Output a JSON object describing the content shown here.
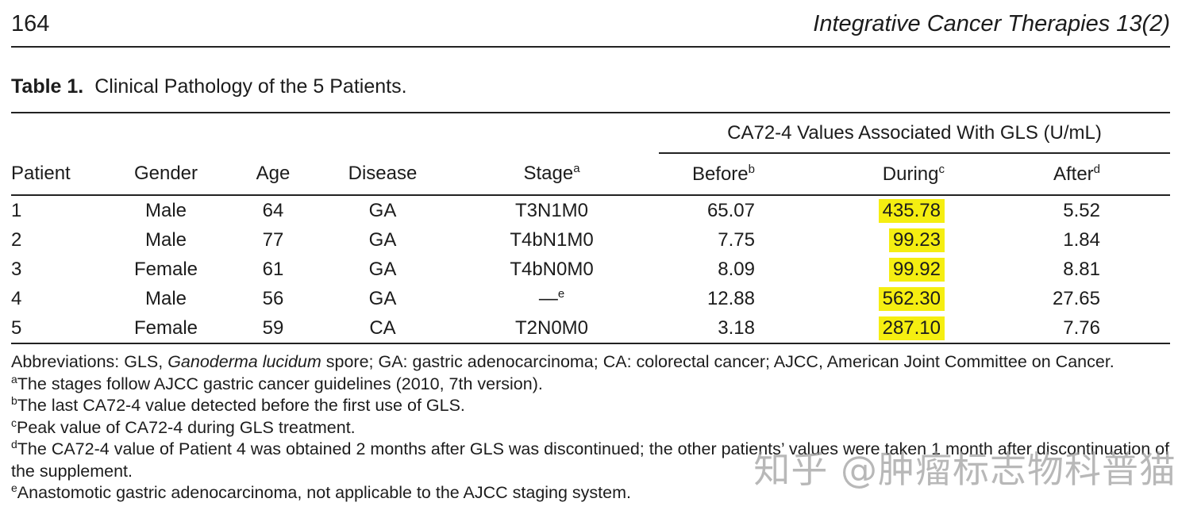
{
  "header": {
    "page_number": "164",
    "journal_title": "Integrative Cancer Therapies 13(2)"
  },
  "table": {
    "caption_label": "Table 1.",
    "caption_text": "Clinical Pathology of the 5 Patients.",
    "group_header": "CA72-4 Values Associated With GLS (U/mL)",
    "highlight_color": "#f5ee11",
    "columns": [
      {
        "label": "Patient",
        "sup": ""
      },
      {
        "label": "Gender",
        "sup": ""
      },
      {
        "label": "Age",
        "sup": ""
      },
      {
        "label": "Disease",
        "sup": ""
      },
      {
        "label": "Stage",
        "sup": "a"
      },
      {
        "label": "Before",
        "sup": "b"
      },
      {
        "label": "During",
        "sup": "c"
      },
      {
        "label": "After",
        "sup": "d"
      }
    ],
    "rows": [
      {
        "patient": "1",
        "gender": "Male",
        "age": "64",
        "disease": "GA",
        "stage": "T3N1M0",
        "stage_sup": "",
        "before": "65.07",
        "during": "435.78",
        "after": "5.52"
      },
      {
        "patient": "2",
        "gender": "Male",
        "age": "77",
        "disease": "GA",
        "stage": "T4bN1M0",
        "stage_sup": "",
        "before": "7.75",
        "during": "99.23",
        "after": "1.84"
      },
      {
        "patient": "3",
        "gender": "Female",
        "age": "61",
        "disease": "GA",
        "stage": "T4bN0M0",
        "stage_sup": "",
        "before": "8.09",
        "during": "99.92",
        "after": "8.81"
      },
      {
        "patient": "4",
        "gender": "Male",
        "age": "56",
        "disease": "GA",
        "stage": "—",
        "stage_sup": "e",
        "before": "12.88",
        "during": "562.30",
        "after": "27.65"
      },
      {
        "patient": "5",
        "gender": "Female",
        "age": "59",
        "disease": "CA",
        "stage": "T2N0M0",
        "stage_sup": "",
        "before": "3.18",
        "during": "287.10",
        "after": "7.76"
      }
    ]
  },
  "footnotes": {
    "abbreviations": {
      "pre": "Abbreviations: GLS, ",
      "italic": "Ganoderma lucidum",
      "post": " spore; GA: gastric adenocarcinoma; CA: colorectal cancer; AJCC, American Joint Committee on Cancer."
    },
    "notes": [
      {
        "sup": "a",
        "text": "The stages follow AJCC gastric cancer guidelines (2010, 7th version)."
      },
      {
        "sup": "b",
        "text": "The last CA72-4 value detected before the first use of GLS."
      },
      {
        "sup": "c",
        "text": "Peak value of CA72-4 during GLS treatment."
      },
      {
        "sup": "d",
        "text": "The CA72-4 value of Patient 4 was obtained 2 months after GLS was discontinued; the other patients’ values were taken 1 month after discontinuation of the supplement."
      },
      {
        "sup": "e",
        "text": "Anastomotic gastric adenocarcinoma, not applicable to the AJCC staging system."
      }
    ]
  },
  "watermark": "知乎 @肿瘤标志物科普猫"
}
